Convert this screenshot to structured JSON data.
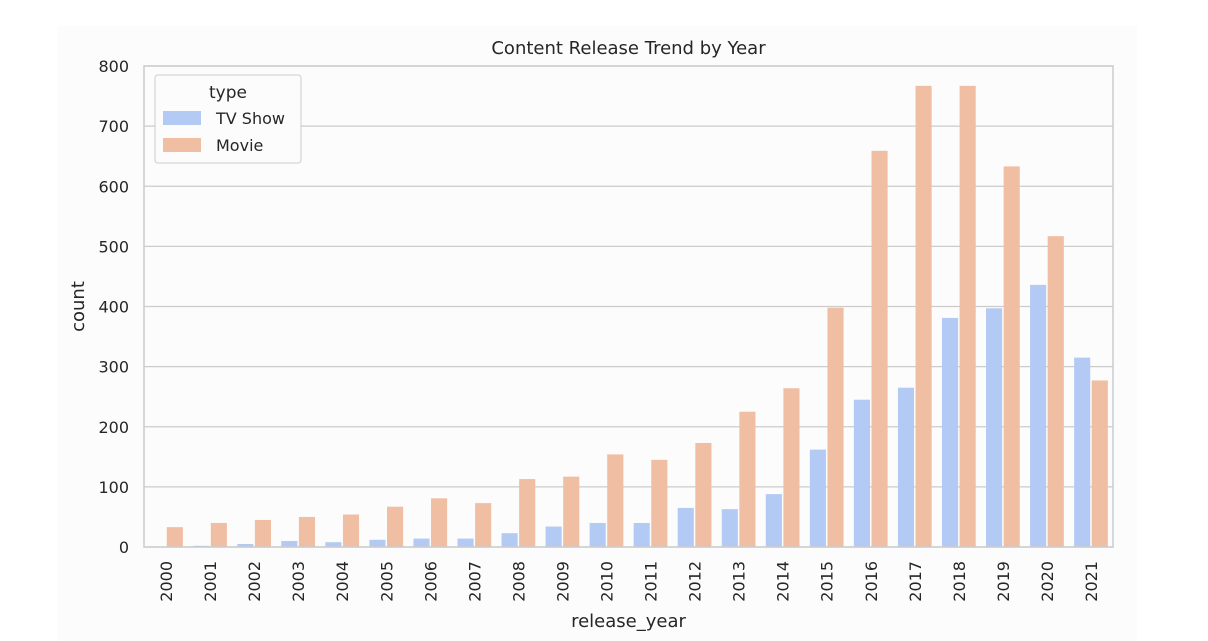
{
  "chart_data": {
    "type": "bar",
    "title": "Content Release Trend by Year",
    "xlabel": "release_year",
    "ylabel": "count",
    "ylim": [
      0,
      800
    ],
    "yticks": [
      0,
      100,
      200,
      300,
      400,
      500,
      600,
      700,
      800
    ],
    "grid": true,
    "legend": {
      "title": "type",
      "placement": "top-left"
    },
    "categories": [
      "2000",
      "2001",
      "2002",
      "2003",
      "2004",
      "2005",
      "2006",
      "2007",
      "2008",
      "2009",
      "2010",
      "2011",
      "2012",
      "2013",
      "2014",
      "2015",
      "2016",
      "2017",
      "2018",
      "2019",
      "2020",
      "2021"
    ],
    "series": [
      {
        "name": "TV Show",
        "color": "#b3cbf4",
        "values": [
          0,
          2,
          5,
          10,
          8,
          12,
          14,
          14,
          23,
          34,
          40,
          40,
          65,
          63,
          88,
          162,
          245,
          265,
          381,
          397,
          436,
          315
        ]
      },
      {
        "name": "Movie",
        "color": "#f0bea3",
        "values": [
          33,
          40,
          45,
          50,
          54,
          67,
          81,
          73,
          113,
          117,
          154,
          145,
          173,
          225,
          264,
          398,
          659,
          767,
          767,
          633,
          517,
          277
        ]
      }
    ]
  }
}
